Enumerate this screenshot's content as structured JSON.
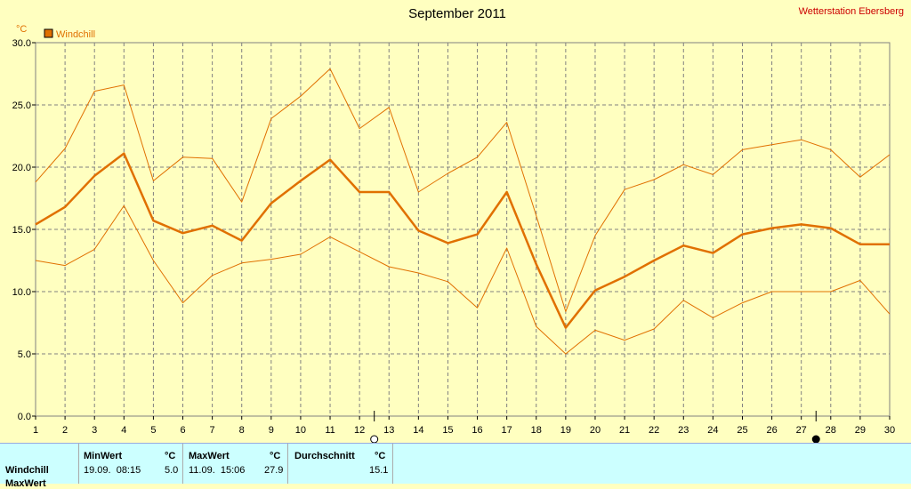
{
  "header": {
    "title": "September 2011",
    "station": "Wetterstation Ebersberg"
  },
  "colors": {
    "background": "#ffffc0",
    "series": "#e07000",
    "grid": "#808080",
    "stats_bg": "#ccffff"
  },
  "chart_data": {
    "type": "line",
    "title": "September 2011",
    "ylabel": "°C",
    "ylim": [
      0,
      30
    ],
    "yticks": [
      "0.0",
      "5.0",
      "10.0",
      "15.0",
      "20.0",
      "25.0",
      "30.0"
    ],
    "x": [
      1,
      2,
      3,
      4,
      5,
      6,
      7,
      8,
      9,
      10,
      11,
      12,
      13,
      14,
      15,
      16,
      17,
      18,
      19,
      20,
      21,
      22,
      23,
      24,
      25,
      26,
      27,
      28,
      29,
      30
    ],
    "grid": true,
    "legend": "top-left",
    "moon_phases": [
      {
        "day": 12.5,
        "icon": "full-moon-icon"
      },
      {
        "day": 27.5,
        "icon": "new-moon-icon"
      }
    ],
    "series": [
      {
        "name": "Windchill",
        "role": "mean",
        "values": [
          15.4,
          16.8,
          19.3,
          21.1,
          15.7,
          14.7,
          15.3,
          14.1,
          17.1,
          18.9,
          20.6,
          18.0,
          18.0,
          14.9,
          13.9,
          14.6,
          18.0,
          12.2,
          7.1,
          10.1,
          11.2,
          12.5,
          13.7,
          13.1,
          14.6,
          15.1,
          15.4,
          15.1,
          13.8,
          13.8
        ]
      },
      {
        "role": "max",
        "values": [
          18.8,
          21.5,
          26.1,
          26.6,
          18.9,
          20.8,
          20.7,
          17.2,
          23.9,
          25.7,
          27.9,
          23.1,
          24.8,
          18.0,
          19.5,
          20.8,
          23.6,
          16.1,
          8.4,
          14.5,
          18.2,
          19.0,
          20.2,
          19.4,
          21.4,
          21.8,
          22.2,
          21.4,
          19.2,
          21.0
        ]
      },
      {
        "role": "min",
        "values": [
          12.5,
          12.1,
          13.4,
          16.9,
          12.5,
          9.1,
          11.3,
          12.3,
          12.6,
          13.0,
          14.4,
          13.2,
          12.0,
          11.5,
          10.8,
          8.7,
          13.5,
          7.2,
          5.0,
          6.9,
          6.1,
          7.0,
          9.3,
          7.9,
          9.1,
          10.0,
          10.0,
          10.0,
          10.9,
          8.2
        ]
      }
    ]
  },
  "stats": {
    "row_label": "Windchill",
    "row_label_next": "MaxWert",
    "min": {
      "header": "MinWert",
      "unit": "°C",
      "date": "19.09.  08:15",
      "value": "5.0"
    },
    "max": {
      "header": "MaxWert",
      "unit": "°C",
      "date": "11.09.  15:06",
      "value": "27.9"
    },
    "avg": {
      "header": "Durchschnitt",
      "unit": "°C",
      "value": "15.1"
    }
  }
}
